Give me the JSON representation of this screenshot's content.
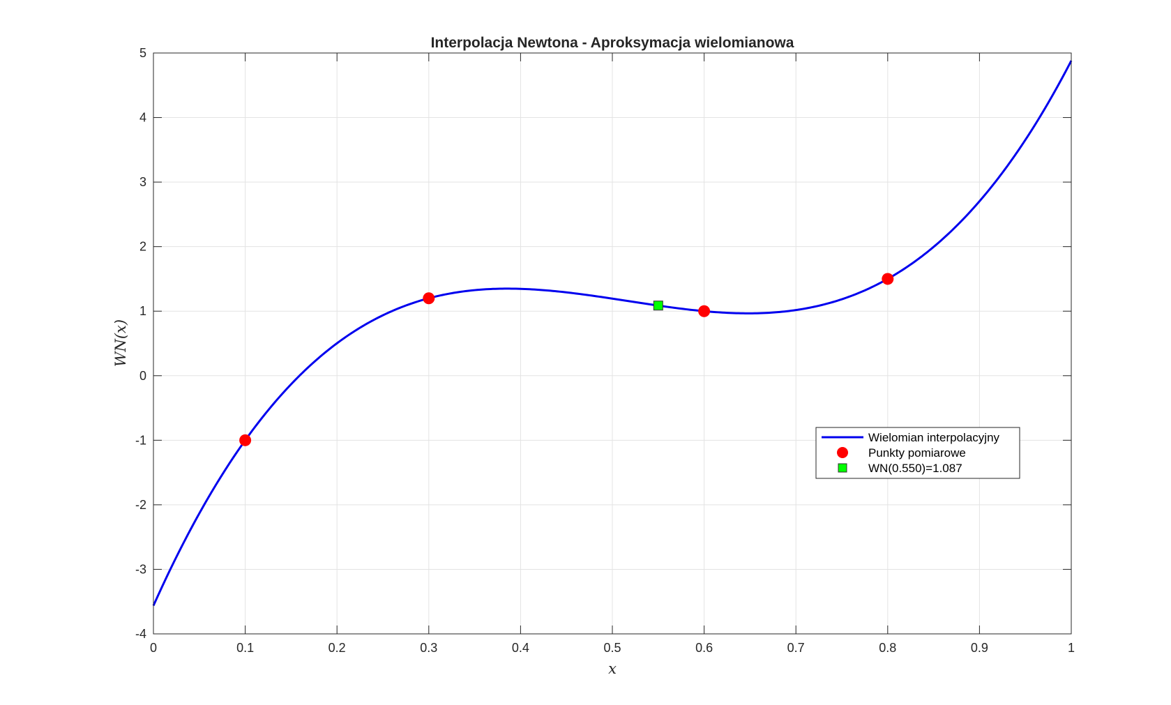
{
  "chart_data": {
    "type": "line",
    "title": "Interpolacja Newtona - Aproksymacja wielomianowa",
    "xlabel": "x",
    "ylabel": "WN(x)",
    "xlim": [
      0,
      1
    ],
    "ylim": [
      -4,
      5
    ],
    "xticks": [
      0,
      0.1,
      0.2,
      0.3,
      0.4,
      0.5,
      0.6,
      0.7,
      0.8,
      0.9,
      1
    ],
    "xtick_labels": [
      "0",
      "0.1",
      "0.2",
      "0.3",
      "0.4",
      "0.5",
      "0.6",
      "0.7",
      "0.8",
      "0.9",
      "1"
    ],
    "yticks": [
      -4,
      -3,
      -2,
      -1,
      0,
      1,
      2,
      3,
      4,
      5
    ],
    "ytick_labels": [
      "-4",
      "-3",
      "-2",
      "-1",
      "0",
      "1",
      "2",
      "3",
      "4",
      "5"
    ],
    "grid": true,
    "legend_position": "right",
    "series": [
      {
        "name": "Wielomian interpolacyjny",
        "kind": "line",
        "color": "#0000ee",
        "polynomial": {
          "nodes_x": [
            0.1,
            0.3,
            0.6,
            0.8
          ],
          "nodes_y": [
            -1,
            1.2,
            1.0,
            1.5
          ]
        }
      },
      {
        "name": "Punkty pomiarowe",
        "kind": "scatter",
        "marker": "circle",
        "color": "#ff0000",
        "x": [
          0.1,
          0.3,
          0.6,
          0.8
        ],
        "y": [
          -1,
          1.2,
          1.0,
          1.5
        ]
      },
      {
        "name": "WN(0.550)=1.087",
        "kind": "scatter",
        "marker": "square",
        "color": "#00ff00",
        "x": [
          0.55
        ],
        "y": [
          1.087
        ]
      }
    ]
  }
}
